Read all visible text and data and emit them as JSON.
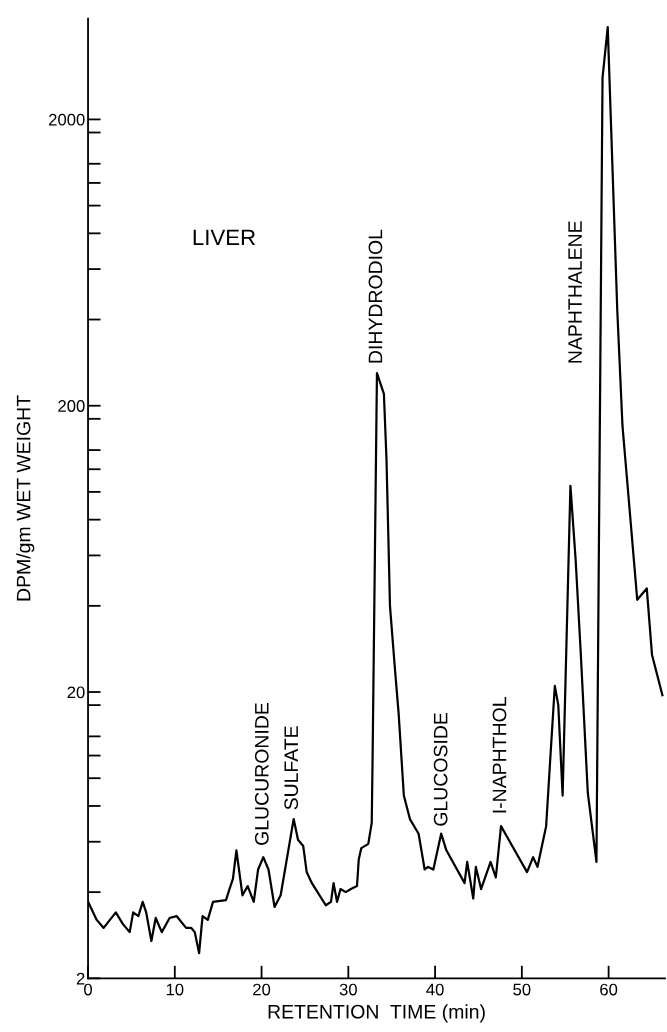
{
  "chart_data": {
    "type": "line",
    "xlabel": "RETENTION  TIME (min)",
    "ylabel": "DPM/gm WET WEIGHT",
    "log": "y",
    "grid": false,
    "legend": false,
    "marker": "none",
    "line_style": "solid",
    "xlim": [
      0,
      66.5
    ],
    "xticks": [
      0,
      10,
      20,
      30,
      40,
      50,
      60
    ],
    "ylim": [
      2,
      4500
    ],
    "yticks": [
      2,
      {
        "value": 4,
        "label": null
      },
      {
        "value": 6,
        "label": null
      },
      {
        "value": 8,
        "label": null
      },
      {
        "value": 10,
        "label": null
      },
      {
        "value": 12,
        "label": null
      },
      {
        "value": 14,
        "label": null
      },
      {
        "value": 18,
        "label": null
      },
      20,
      {
        "value": 40,
        "label": null
      },
      {
        "value": 60,
        "label": null
      },
      {
        "value": 80,
        "label": null
      },
      {
        "value": 100,
        "label": null
      },
      {
        "value": 120,
        "label": null
      },
      {
        "value": 140,
        "label": null
      },
      {
        "value": 180,
        "label": null
      },
      200,
      {
        "value": 400,
        "label": null
      },
      {
        "value": 600,
        "label": null
      },
      {
        "value": 800,
        "label": null
      },
      {
        "value": 1000,
        "label": null
      },
      {
        "value": 1200,
        "label": null
      },
      {
        "value": 1400,
        "label": null
      },
      {
        "value": 1800,
        "label": null
      },
      2000
    ],
    "series": [
      {
        "color": "#000000",
        "x": [
          0,
          1,
          1.8,
          3.2,
          4.0,
          4.8,
          5.2,
          5.8,
          6.3,
          6.7,
          7.3,
          7.8,
          8.5,
          9.4,
          10.2,
          11.3,
          11.9,
          12.3,
          12.8,
          13.2,
          13.8,
          14.4,
          15.9,
          16.3,
          16.7,
          17.1,
          17.8,
          18.4,
          19.1,
          19.6,
          20.2,
          20.8,
          21.5,
          22.2,
          23.7,
          24.2,
          24.8,
          25.2,
          25.8,
          27.4,
          28.0,
          28.3,
          28.7,
          29.1,
          29.7,
          30.3,
          31.0,
          31.2,
          31.5,
          32.3,
          32.7,
          32.8,
          33.3,
          34.1,
          34.4,
          34.8,
          35.4,
          35.8,
          36.4,
          37.1,
          38.1,
          38.8,
          39.2,
          39.8,
          40.7,
          41.3,
          43.4,
          43.7,
          44.4,
          44.7,
          45.3,
          46.4,
          47.0,
          47.6,
          50.6,
          51.3,
          51.8,
          52.8,
          53.3,
          53.8,
          54.2,
          54.7,
          55.6,
          56.2,
          56.8,
          57.6,
          58.6,
          59.3,
          59.9,
          61.0,
          61.6,
          62.2,
          63.3,
          64.4,
          65.0,
          66.2
        ],
        "values": [
          3.7,
          3.2,
          3.0,
          3.4,
          3.1,
          2.9,
          3.4,
          3.3,
          3.7,
          3.4,
          2.7,
          3.25,
          2.9,
          3.25,
          3.3,
          3.0,
          3.0,
          2.9,
          2.45,
          3.3,
          3.2,
          3.7,
          3.75,
          4.1,
          4.45,
          5.6,
          3.9,
          4.2,
          3.7,
          4.8,
          5.3,
          4.8,
          3.55,
          3.9,
          7.2,
          6.1,
          5.8,
          4.7,
          4.3,
          3.6,
          3.7,
          4.3,
          3.7,
          4.1,
          4.0,
          4.1,
          4.2,
          5.2,
          5.7,
          5.9,
          7.0,
          12,
          260,
          220,
          130,
          40,
          23.5,
          16.8,
          8.7,
          7.2,
          6.4,
          4.8,
          4.9,
          4.8,
          6.4,
          5.6,
          4.3,
          5.1,
          3.8,
          4.9,
          4.1,
          5.1,
          4.5,
          6.8,
          4.7,
          5.3,
          4.9,
          6.8,
          12,
          21,
          18,
          8.7,
          105,
          58,
          27,
          8.9,
          5.1,
          2800,
          4200,
          430,
          170,
          104,
          42,
          46,
          27,
          19.5
        ]
      }
    ],
    "annotations": [
      "LIVER",
      "GLUCURONIDE",
      "SULFATE",
      "DIHYDRODIOL",
      "GLUCOSIDE",
      "I-NAPHTHOL",
      "NAPHTHALENE"
    ]
  }
}
